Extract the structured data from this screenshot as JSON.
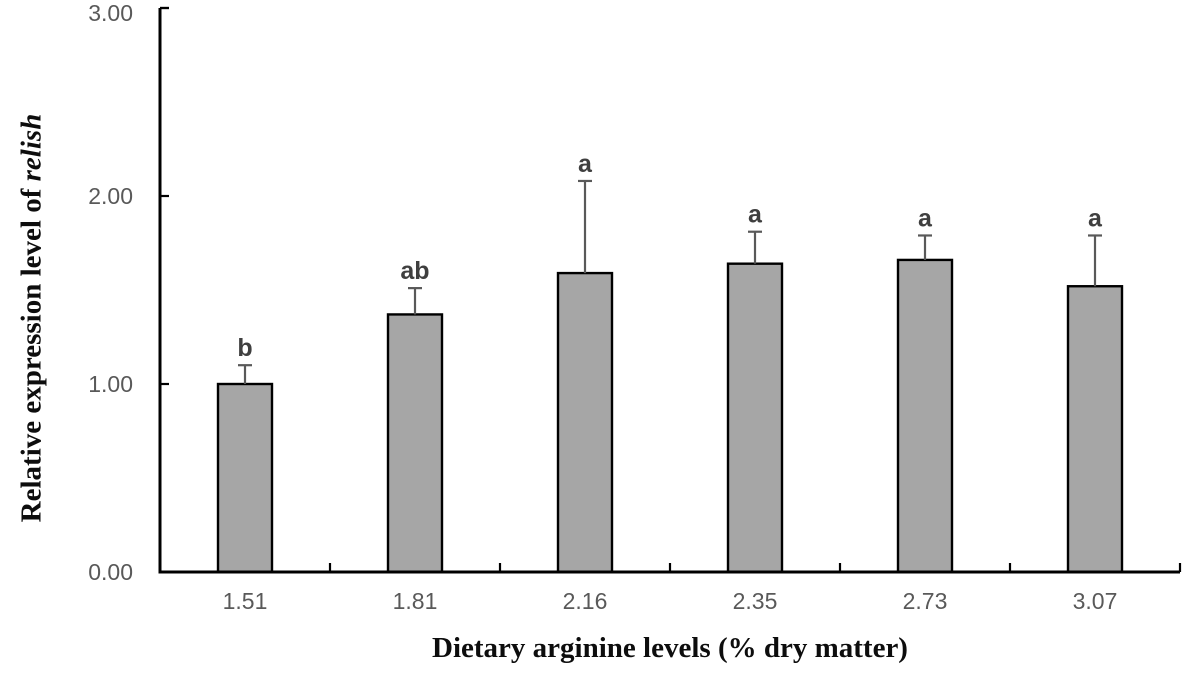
{
  "chart_data": {
    "type": "bar",
    "title": "",
    "xlabel": "Dietary arginine levels (% dry matter)",
    "ylabel": "Relative expression level of relish",
    "ylabel_parts": {
      "regular": "Relative expression level of ",
      "italic": "relish"
    },
    "categories": [
      "1.51",
      "1.81",
      "2.16",
      "2.35",
      "2.73",
      "3.07"
    ],
    "series": [
      {
        "name": "Relative expression level of relish",
        "values": [
          1.0,
          1.37,
          1.59,
          1.64,
          1.66,
          1.52
        ],
        "errors_plus": [
          0.1,
          0.14,
          0.49,
          0.17,
          0.13,
          0.27
        ],
        "sig_letters": [
          "b",
          "ab",
          "a",
          "a",
          "a",
          "a"
        ]
      }
    ],
    "ylim": [
      0,
      3
    ],
    "yticks": [
      0,
      1,
      2,
      3
    ],
    "ytick_labels": [
      "0.00",
      "1.00",
      "2.00",
      "3.00"
    ],
    "grid": false,
    "legend": "none",
    "colors": {
      "bar_fill": "#A6A6A6",
      "bar_border": "#000000",
      "error_bar": "#595959",
      "axis": "#000000",
      "tick_label": "#595959",
      "sig_letter": "#3F3F3F",
      "background": "#FFFFFF"
    }
  }
}
